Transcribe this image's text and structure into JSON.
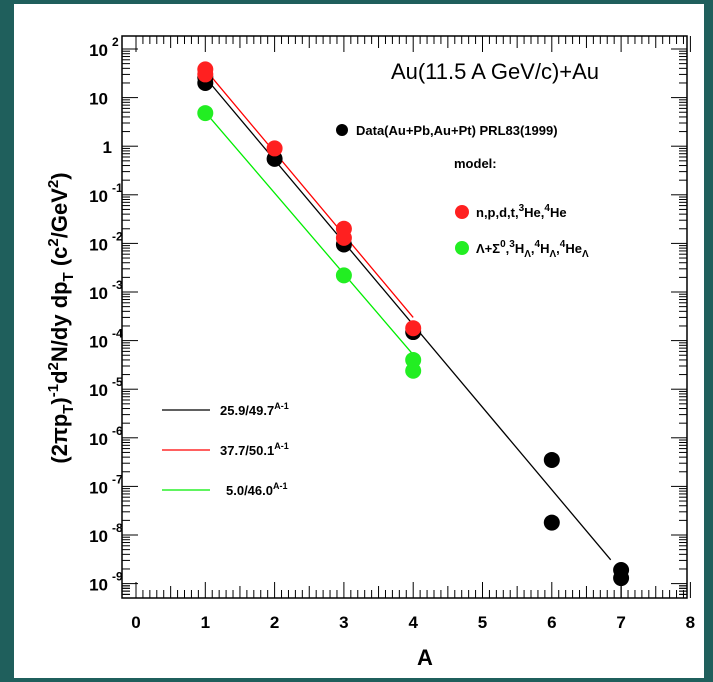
{
  "chart_data": {
    "type": "scatter",
    "title": "Au(11.5 A GeV/c)+Au",
    "xlabel": "A",
    "ylabel_parts": {
      "a": "(2πp",
      "b": "T",
      "c": ")",
      "d": "-1",
      "e": "d",
      "f": "2",
      "g": "N/dy dp",
      "h": "T",
      "i": " (c",
      "j": "2",
      "k": "/GeV",
      "l": "2",
      "m": ")"
    },
    "xlim": [
      0,
      8.5
    ],
    "ylim_log10": [
      -9.5,
      2.2
    ],
    "x_ticks": [
      "0",
      "1",
      "2",
      "3",
      "4",
      "5",
      "6",
      "7",
      "8"
    ],
    "y_ticks": [
      {
        "exp": 2,
        "base": "10",
        "sup": "2"
      },
      {
        "exp": 1,
        "base": "10",
        "sup": ""
      },
      {
        "exp": 0,
        "base": "1",
        "sup": ""
      },
      {
        "exp": -1,
        "base": "10",
        "sup": "-1"
      },
      {
        "exp": -2,
        "base": "10",
        "sup": "-2"
      },
      {
        "exp": -3,
        "base": "10",
        "sup": "-3"
      },
      {
        "exp": -4,
        "base": "10",
        "sup": "-4"
      },
      {
        "exp": -5,
        "base": "10",
        "sup": "-5"
      },
      {
        "exp": -6,
        "base": "10",
        "sup": "-6"
      },
      {
        "exp": -7,
        "base": "10",
        "sup": "-7"
      },
      {
        "exp": -8,
        "base": "10",
        "sup": "-8"
      },
      {
        "exp": -9,
        "base": "10",
        "sup": "-9"
      }
    ],
    "series": [
      {
        "name": "Data(Au+Pb,Au+Pt) PRL83(1999)",
        "color": "#000000",
        "points": [
          [
            1,
            20
          ],
          [
            1,
            26
          ],
          [
            2,
            0.55
          ],
          [
            3,
            0.0095
          ],
          [
            4,
            0.00015
          ],
          [
            6,
            3.5e-07
          ],
          [
            6,
            1.8e-08
          ],
          [
            7,
            1.9e-09
          ],
          [
            7,
            1.3e-09
          ]
        ]
      },
      {
        "name": "n,p,d,t,³He,⁴He",
        "color": "#ff0000",
        "points": [
          [
            1,
            38
          ],
          [
            1,
            30
          ],
          [
            2,
            0.9
          ],
          [
            3,
            0.02
          ],
          [
            3,
            0.013
          ],
          [
            4,
            0.00018
          ]
        ]
      },
      {
        "name": "Λ+Σ⁰,³HΛ,⁴HΛ,⁴HeΛ",
        "color": "#00ee00",
        "points": [
          [
            1,
            4.8
          ],
          [
            3,
            0.0022
          ],
          [
            4,
            4e-05
          ],
          [
            4,
            2.4e-05
          ]
        ]
      }
    ],
    "fits": [
      {
        "label": "25.9/49.7",
        "sup": "A-1",
        "color": "#000000",
        "a": 25.9,
        "b": 49.7,
        "x_range": [
          1,
          6.85
        ]
      },
      {
        "label": "37.7/50.1",
        "sup": "A-1",
        "color": "#ff0000",
        "a": 37.7,
        "b": 50.1,
        "x_range": [
          1,
          4
        ]
      },
      {
        "label": "5.0/46.0",
        "sup": "A-1",
        "color": "#00ee00",
        "a": 5.0,
        "b": 46.0,
        "x_range": [
          1,
          4
        ]
      }
    ],
    "legend": {
      "model_label": "model:",
      "label_parts": {
        "s1a": "n,p,d,t,",
        "s1b": "3",
        "s1c": "He,",
        "s1d": "4",
        "s1e": "He",
        "s2a": "Λ+Σ",
        "s2b": "0",
        "s2c": ",",
        "s2d": "3",
        "s2e": "H",
        "s2f": "Λ",
        "s2g": ",",
        "s2h": "4",
        "s2i": "H",
        "s2j": "Λ",
        "s2k": ",",
        "s2l": "4",
        "s2m": "He",
        "s2n": "Λ"
      }
    }
  }
}
